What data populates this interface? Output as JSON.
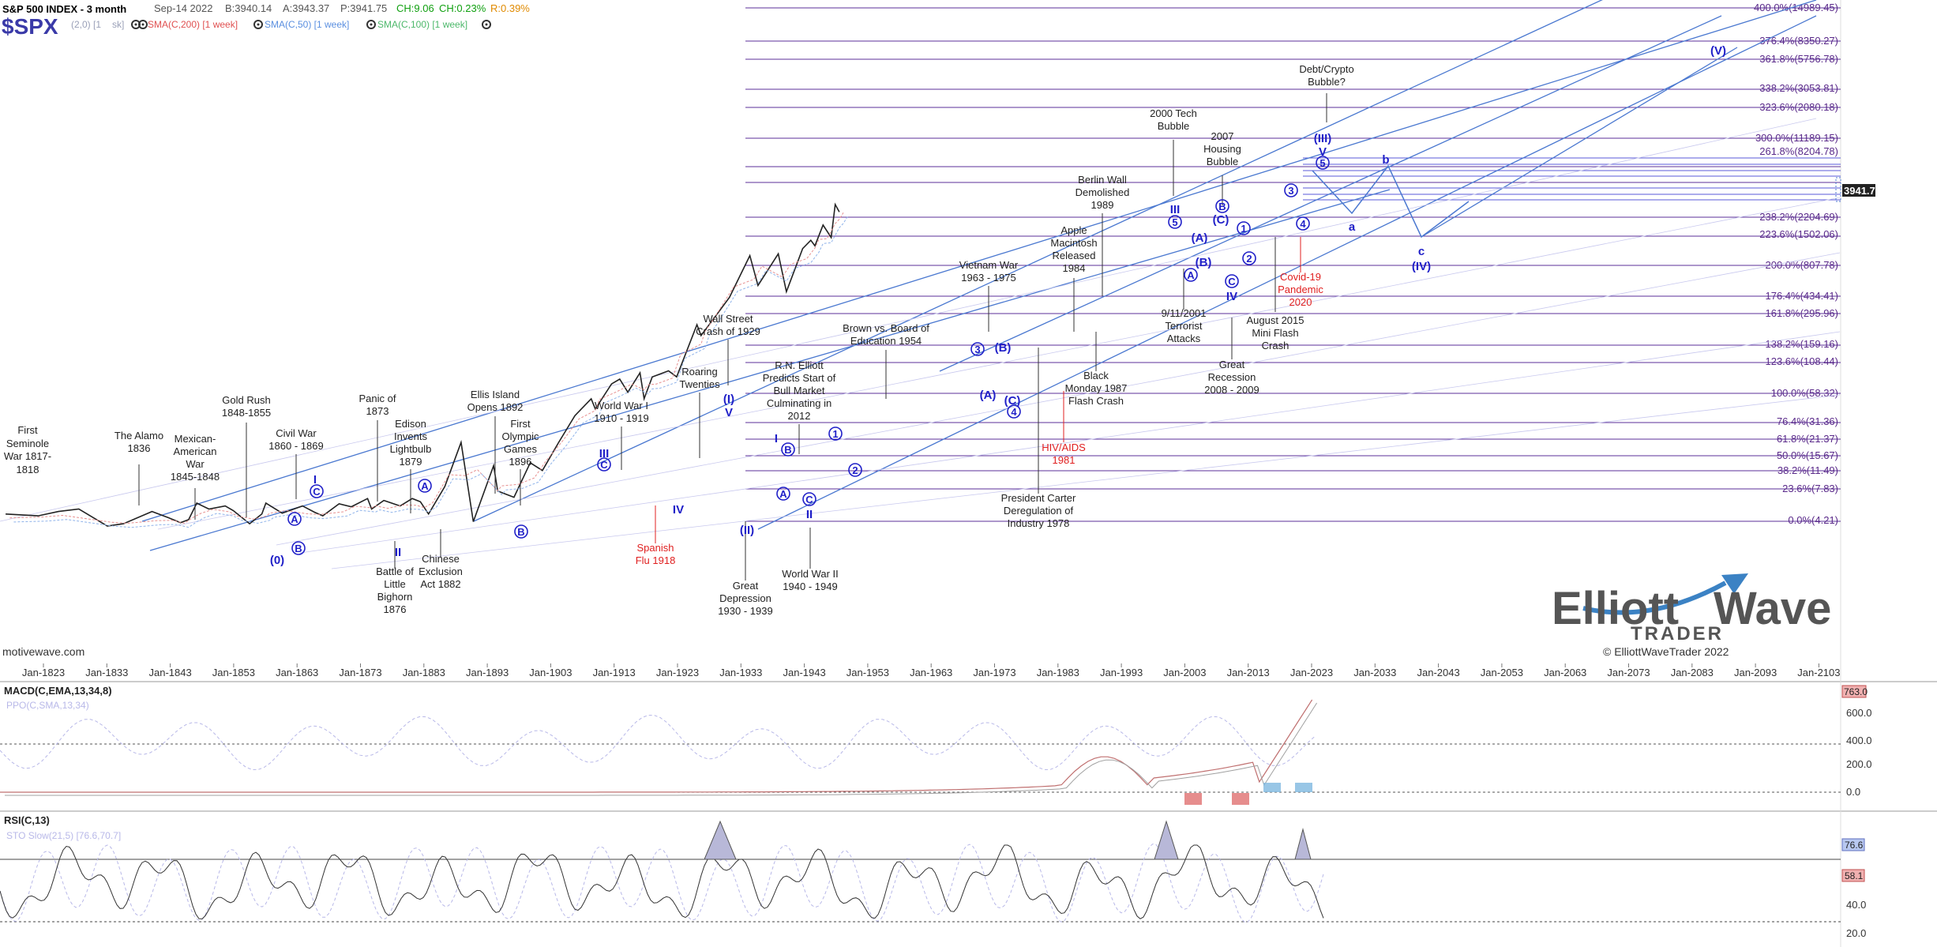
{
  "header": {
    "title": "S&P 500 INDEX - 3 month",
    "date": "Sep-14 2022",
    "bid": "B:3940.14",
    "ask": "A:3943.37",
    "price": "P:3941.75",
    "change": "CH:9.06",
    "change_pct": "CH:0.23%",
    "range": "R:0.39%",
    "symbol": "$SPX",
    "studies": [
      {
        "label": "(2,0) [1 ",
        "color": "#9aa0b8"
      },
      {
        "label": "sk]",
        "color": "#9aa0b8"
      },
      {
        "label": "SMA(C,200) [1 week]",
        "color": "#e05050"
      },
      {
        "label": "SMA(C,50) [1 week]",
        "color": "#5a8fe0"
      },
      {
        "label": "SMA(C,100) [1 week]",
        "color": "#4cb86a"
      }
    ],
    "source": "motivewave.com"
  },
  "price_badge": "3941.75",
  "logo": {
    "word1": "Elliott",
    "word2": "Wave",
    "word3": "TRADER",
    "copyright": "© ElliottWaveTrader 2022"
  },
  "chart_data": [
    {
      "type": "line",
      "title": "S&P 500 INDEX - 3 month",
      "yscale": "log",
      "x_ticks": [
        "Jan-1823",
        "Jan-1833",
        "Jan-1843",
        "Jan-1853",
        "Jan-1863",
        "Jan-1873",
        "Jan-1883",
        "Jan-1893",
        "Jan-1903",
        "Jan-1913",
        "Jan-1923",
        "Jan-1933",
        "Jan-1943",
        "Jan-1953",
        "Jan-1963",
        "Jan-1973",
        "Jan-1983",
        "Jan-1993",
        "Jan-2003",
        "Jan-2013",
        "Jan-2023",
        "Jan-2033",
        "Jan-2043",
        "Jan-2053",
        "Jan-2063",
        "Jan-2073",
        "Jan-2083",
        "Jan-2093",
        "Jan-2103"
      ],
      "series": [
        {
          "values_x": [
            1817,
            1825,
            1830,
            1835,
            1842,
            1846,
            1853,
            1857,
            1860,
            1862,
            1864,
            1867,
            1871,
            1873,
            1877,
            1880,
            1881,
            1885,
            1890,
            1893,
            1895,
            1899,
            1902,
            1906,
            1907,
            1910,
            1914,
            1917,
            1919,
            1921,
            1925,
            1929,
            1932,
            1937,
            1938,
            1942,
            1946,
            1949,
            1953,
            1957,
            1961,
            1962,
            1966,
            1968,
            1970,
            1973,
            1974,
            1976,
            1980,
            1982,
            1987,
            1988,
            1990,
            1995,
            2000,
            2002,
            2007,
            2009,
            2013,
            2015,
            2016,
            2018,
            2020,
            2021,
            2022
          ],
          "values_y": [
            5.2,
            5.0,
            5.5,
            5.8,
            4.0,
            4.2,
            5.5,
            4.8,
            4.3,
            4.6,
            6.6,
            5.8,
            6.2,
            5.6,
            4.2,
            5.2,
            6.6,
            5.3,
            6.2,
            5.4,
            5.0,
            6.5,
            6.1,
            7.3,
            5.8,
            7.0,
            6.2,
            7.3,
            6.8,
            5.2,
            9.5,
            25.0,
            4.4,
            15.0,
            8.6,
            7.5,
            16.0,
            13.5,
            25.0,
            45.0,
            65.0,
            52.0,
            90.0,
            100.0,
            75.0,
            115.0,
            65.0,
            105.0,
            120.0,
            105.0,
            330.0,
            260.0,
            330.0,
            600.0,
            1500.0,
            780.0,
            1560.0,
            680.0,
            1750.0,
            2100.0,
            1860.0,
            2930.0,
            2230.0,
            4600.0,
            3900.0
          ]
        }
      ],
      "y_levels": [
        {
          "value": 14989.45,
          "label": "400.0%(14989.45)"
        },
        {
          "value": 8350.27,
          "label": "376.4%(8350.27)"
        },
        {
          "value": 5756.78,
          "label": "361.8%(5756.78)"
        },
        {
          "value": 3053.81,
          "label": "338.2%(3053.81)"
        },
        {
          "value": 2080.18,
          "label": "323.6%(2080.18)"
        },
        {
          "value": 11189.15,
          "label": "300.0%(11189.15)"
        },
        {
          "value": 8204.78,
          "label": "261.8%(8204.78)"
        },
        {
          "value": 2204.69,
          "label": "238.2%(2204.69)"
        },
        {
          "value": 1502.06,
          "label": "223.6%(1502.06)"
        },
        {
          "value": 807.78,
          "label": "200.0%(807.78)"
        },
        {
          "value": 434.41,
          "label": "176.4%(434.41)"
        },
        {
          "value": 295.96,
          "label": "161.8%(295.96)"
        },
        {
          "value": 159.16,
          "label": "138.2%(159.16)"
        },
        {
          "value": 108.44,
          "label": "123.6%(108.44)"
        },
        {
          "value": 58.32,
          "label": "100.0%(58.32)"
        },
        {
          "value": 31.36,
          "label": "76.4%(31.36)"
        },
        {
          "value": 21.37,
          "label": "61.8%(21.37)"
        },
        {
          "value": 15.67,
          "label": "50.0%(15.67)"
        },
        {
          "value": 11.49,
          "label": "38.2%(11.49)"
        },
        {
          "value": 7.83,
          "label": "23.6%(7.83)"
        },
        {
          "value": 4.21,
          "label": "0.0%(4.21)"
        }
      ],
      "annotations": [
        "First Seminole War 1817-1818",
        "The Alamo 1836",
        "Mexican-American War 1845-1848",
        "Gold Rush 1848-1855",
        "Civil War 1860 - 1869",
        "Panic of 1873",
        "Edison Invents Lightbulb 1879",
        "Battle of Little Bighorn 1876",
        "Chinese Exclusion Act 1882",
        "Ellis Island Opens 1892",
        "First Olympic Games 1896",
        "World War I 1910 - 1919",
        "Spanish Flu 1918",
        "Roaring Twenties",
        "Wall Street Crash of 1929",
        "Great Depression 1930 - 1939",
        "R.N. Elliott Predicts Start of Bull Market Culminating in 2012",
        "World War II 1940 - 1949",
        "Brown vs. Board of Education 1954",
        "Vietnam War 1963 - 1975",
        "President Carter Deregulation of Industry 1978",
        "HIV/AIDS 1981",
        "Apple Macintosh Released 1984",
        "Black Monday 1987 Flash Crash",
        "Berlin Wall Demolished 1989",
        "2000 Tech Bubble",
        "9/11/2001 Terrorist Attacks",
        "2007 Housing Bubble",
        "Great Recession 2008 - 2009",
        "August 2015 Mini Flash Crash",
        "Covid-19 Pandemic 2020",
        "Debt/Crypto Bubble?"
      ],
      "wave_labels": [
        "(0)",
        "A",
        "B",
        "C",
        "I",
        "II",
        "A",
        "B",
        "C",
        "III",
        "IV",
        "(I)",
        "V",
        "(II)",
        "A",
        "B",
        "C",
        "I",
        "1",
        "2",
        "II",
        "3",
        "4",
        "(A)",
        "(B)",
        "(C)",
        "5",
        "III",
        "(A)",
        "(B)",
        "A",
        "B",
        "C",
        "IV",
        "1",
        "2",
        "3",
        "4",
        "5",
        "V",
        "(III)",
        "a",
        "b",
        "c",
        "(IV)",
        "(V)"
      ]
    },
    {
      "type": "line",
      "title": "MACD(C,EMA,13,34,8)",
      "secondary_label": "PPO(C,SMA,13,34)",
      "y_ticks": [
        0.0,
        200.0,
        400.0,
        600.0
      ],
      "last_value": "763.0",
      "y_ticks_text": [
        "0.0",
        "200.0",
        "400.0",
        "600.0"
      ]
    },
    {
      "type": "line",
      "title": "RSI(C,13)",
      "secondary_label": "STO Slow(21,5) [76.6,70.7]",
      "y_ticks": [
        40.0,
        20.0
      ],
      "y_ticks_text": [
        "40.0",
        "20.0"
      ],
      "last_values": [
        "76.6",
        "58.1"
      ]
    }
  ]
}
